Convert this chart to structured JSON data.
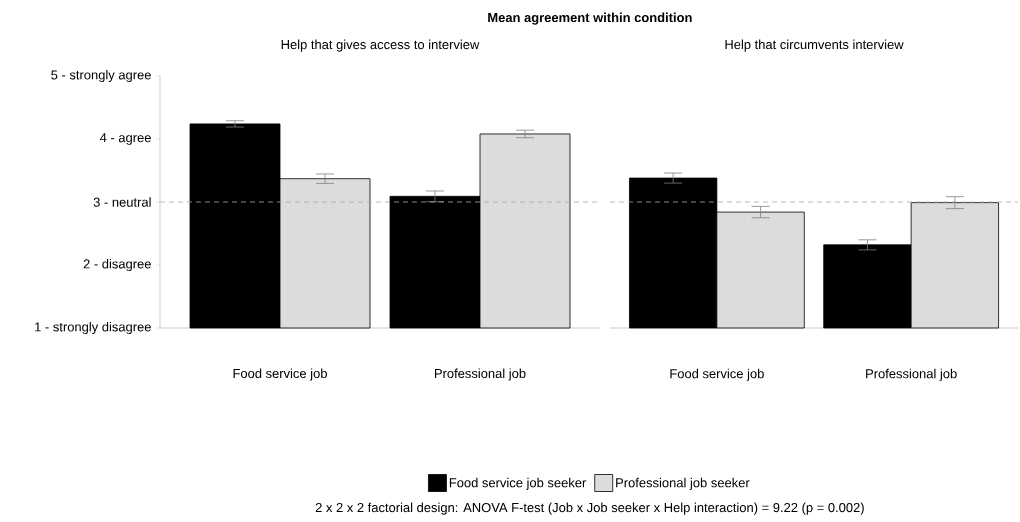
{
  "chart_data": [
    {
      "type": "bar",
      "title": "Mean agreement within condition",
      "subtitle": "Help that gives access to interview",
      "categories": [
        "Food service job",
        "Professional job"
      ],
      "series": [
        {
          "name": "Food service job seeker",
          "color": "#000000",
          "values": [
            4.24,
            3.09
          ],
          "errors": [
            0.05,
            0.085
          ]
        },
        {
          "name": "Professional job seeker",
          "color": "#dcdcdc",
          "values": [
            3.37,
            4.08
          ],
          "errors": [
            0.075,
            0.06
          ]
        }
      ],
      "ylim": [
        1,
        5
      ],
      "yticks": [
        {
          "value": 1,
          "label": "1 - strongly disagree"
        },
        {
          "value": 2,
          "label": "2 - disagree"
        },
        {
          "value": 3,
          "label": "3 - neutral"
        },
        {
          "value": 4,
          "label": "4 - agree"
        },
        {
          "value": 5,
          "label": "5 - strongly agree"
        }
      ],
      "ref_lines": [
        {
          "axis": "y",
          "value": 3,
          "color": "#a8a8a8",
          "line_style": "dashed"
        }
      ],
      "legend": "bottom",
      "annotations": [
        "2 x 2 x 2 factorial design: ANOVA F-test (Job x Job seeker x Help interaction) = 9.22 (p = 0.002)"
      ]
    },
    {
      "type": "bar",
      "title": "Help that circumvents interview",
      "categories": [
        "Food service job",
        "Professional job"
      ],
      "series": [
        {
          "color": "#000000",
          "values": [
            3.38,
            2.32
          ],
          "errors": [
            0.08,
            0.08
          ]
        },
        {
          "color": "#dcdcdc",
          "values": [
            2.84,
            2.99
          ],
          "errors": [
            0.09,
            0.095
          ]
        }
      ],
      "ylim": [
        1,
        5
      ],
      "tick_labels": "x",
      "ref_lines": [
        {
          "axis": "y",
          "value": 3,
          "color": "#a8a8a8",
          "line_style": "dashed"
        }
      ]
    }
  ]
}
